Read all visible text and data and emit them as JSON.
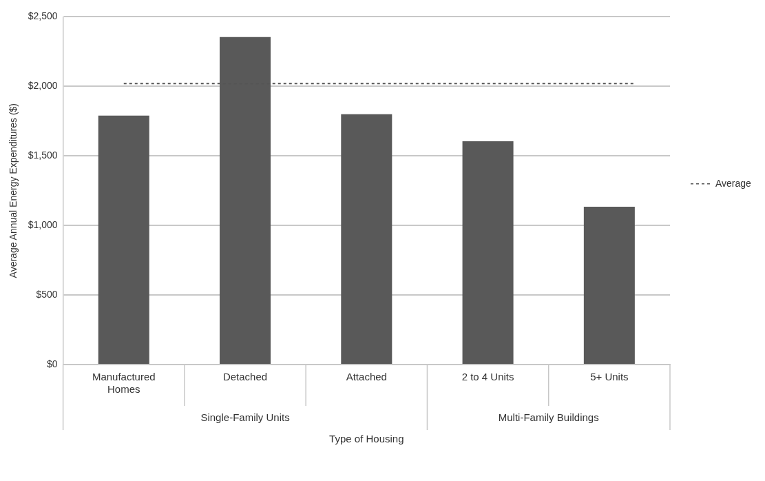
{
  "chart_data": {
    "type": "bar",
    "xlabel": "Type of Housing",
    "ylabel": "Average Annual Energy Expenditures ($)",
    "categories": [
      "Manufactured Homes",
      "Detached",
      "Attached",
      "2 to 4 Units",
      "5+ Units"
    ],
    "values": [
      1790,
      2355,
      1800,
      1605,
      1135
    ],
    "color": "#595959",
    "ylim": [
      0,
      2500
    ],
    "yticks": [
      {
        "value": 0,
        "label": "$0"
      },
      {
        "value": 500,
        "label": "$500"
      },
      {
        "value": 1000,
        "label": "$1,000"
      },
      {
        "value": 1500,
        "label": "$1,500"
      },
      {
        "value": 2000,
        "label": "$2,000"
      },
      {
        "value": 2500,
        "label": "$2,500"
      }
    ],
    "grid": "y",
    "legend": "right",
    "ref_lines": [
      {
        "axis": "y",
        "value": 2020,
        "label": "Average",
        "color": "#555555",
        "line_style": "dashed"
      }
    ],
    "annotations": [
      "Single-Family Units",
      "Multi-Family Buildings"
    ]
  }
}
